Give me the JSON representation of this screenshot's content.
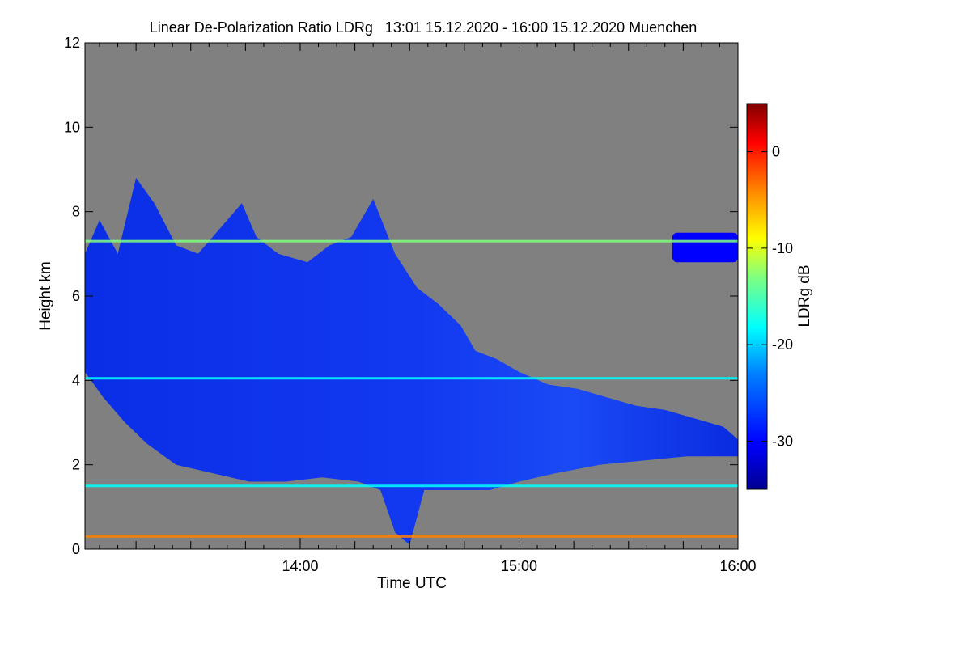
{
  "chart_data": {
    "type": "heatmap",
    "title": "Linear De-Polarization Ratio LDRg   13:01 15.12.2020 - 16:00 15.12.2020 Muenchen",
    "xlabel": "Time UTC",
    "ylabel": "Height km",
    "x_range": [
      "13:01",
      "16:00"
    ],
    "xlim_minutes": [
      781,
      960
    ],
    "ylim": [
      0,
      12
    ],
    "x_ticks": [
      {
        "label": "14:00",
        "minute": 840
      },
      {
        "label": "15:00",
        "minute": 900
      },
      {
        "label": "16:00",
        "minute": 960
      }
    ],
    "y_ticks": [
      0,
      2,
      4,
      6,
      8,
      10,
      12
    ],
    "colorbar": {
      "label": "LDRg dB",
      "range": [
        -35,
        5
      ],
      "ticks": [
        0,
        -10,
        -20,
        -30
      ],
      "colors": [
        "#00008f",
        "#0000ff",
        "#0080ff",
        "#00ffff",
        "#80ff80",
        "#ffff00",
        "#ff8000",
        "#ff0000",
        "#800000"
      ]
    },
    "background_color": "#808080",
    "cloud_regions": [
      {
        "name": "main ice cloud",
        "ldr_db": -32,
        "top_km": [
          [
            781,
            7.0
          ],
          [
            785,
            7.8
          ],
          [
            790,
            7.0
          ],
          [
            795,
            8.8
          ],
          [
            800,
            8.2
          ],
          [
            806,
            7.2
          ],
          [
            812,
            7.0
          ],
          [
            818,
            7.6
          ],
          [
            824,
            8.2
          ],
          [
            828,
            7.4
          ],
          [
            834,
            7.0
          ],
          [
            842,
            6.8
          ],
          [
            848,
            7.2
          ],
          [
            854,
            7.4
          ],
          [
            860,
            8.3
          ],
          [
            866,
            7.0
          ],
          [
            872,
            6.2
          ],
          [
            878,
            5.8
          ],
          [
            884,
            5.3
          ],
          [
            888,
            4.7
          ],
          [
            894,
            4.5
          ],
          [
            900,
            4.2
          ],
          [
            908,
            3.9
          ],
          [
            916,
            3.8
          ],
          [
            924,
            3.6
          ],
          [
            932,
            3.4
          ],
          [
            940,
            3.3
          ],
          [
            948,
            3.1
          ],
          [
            956,
            2.9
          ],
          [
            960,
            2.6
          ]
        ],
        "base_km": [
          [
            781,
            4.2
          ],
          [
            786,
            3.6
          ],
          [
            792,
            3.0
          ],
          [
            798,
            2.5
          ],
          [
            806,
            2.0
          ],
          [
            816,
            1.8
          ],
          [
            826,
            1.6
          ],
          [
            836,
            1.6
          ],
          [
            846,
            1.7
          ],
          [
            856,
            1.6
          ],
          [
            862,
            1.4
          ],
          [
            866,
            0.4
          ],
          [
            870,
            0.1
          ],
          [
            874,
            1.4
          ],
          [
            882,
            1.4
          ],
          [
            892,
            1.4
          ],
          [
            900,
            1.6
          ],
          [
            910,
            1.8
          ],
          [
            922,
            2.0
          ],
          [
            934,
            2.1
          ],
          [
            946,
            2.2
          ],
          [
            956,
            2.2
          ],
          [
            960,
            2.2
          ]
        ]
      },
      {
        "name": "upper cloud patch",
        "ldr_db": -32,
        "minute_range": [
          942,
          960
        ],
        "height_km": [
          6.8,
          7.5
        ]
      }
    ],
    "layers": [
      {
        "name": "aerosol layer",
        "height_km": 0.3,
        "ldr_db": -3
      },
      {
        "name": "melting / cloud-base layer",
        "height_km": 1.5,
        "ldr_db": -22
      },
      {
        "name": "layer",
        "height_km": 4.05,
        "ldr_db": -22
      },
      {
        "name": "layer",
        "height_km": 7.3,
        "ldr_db": -15
      }
    ]
  }
}
